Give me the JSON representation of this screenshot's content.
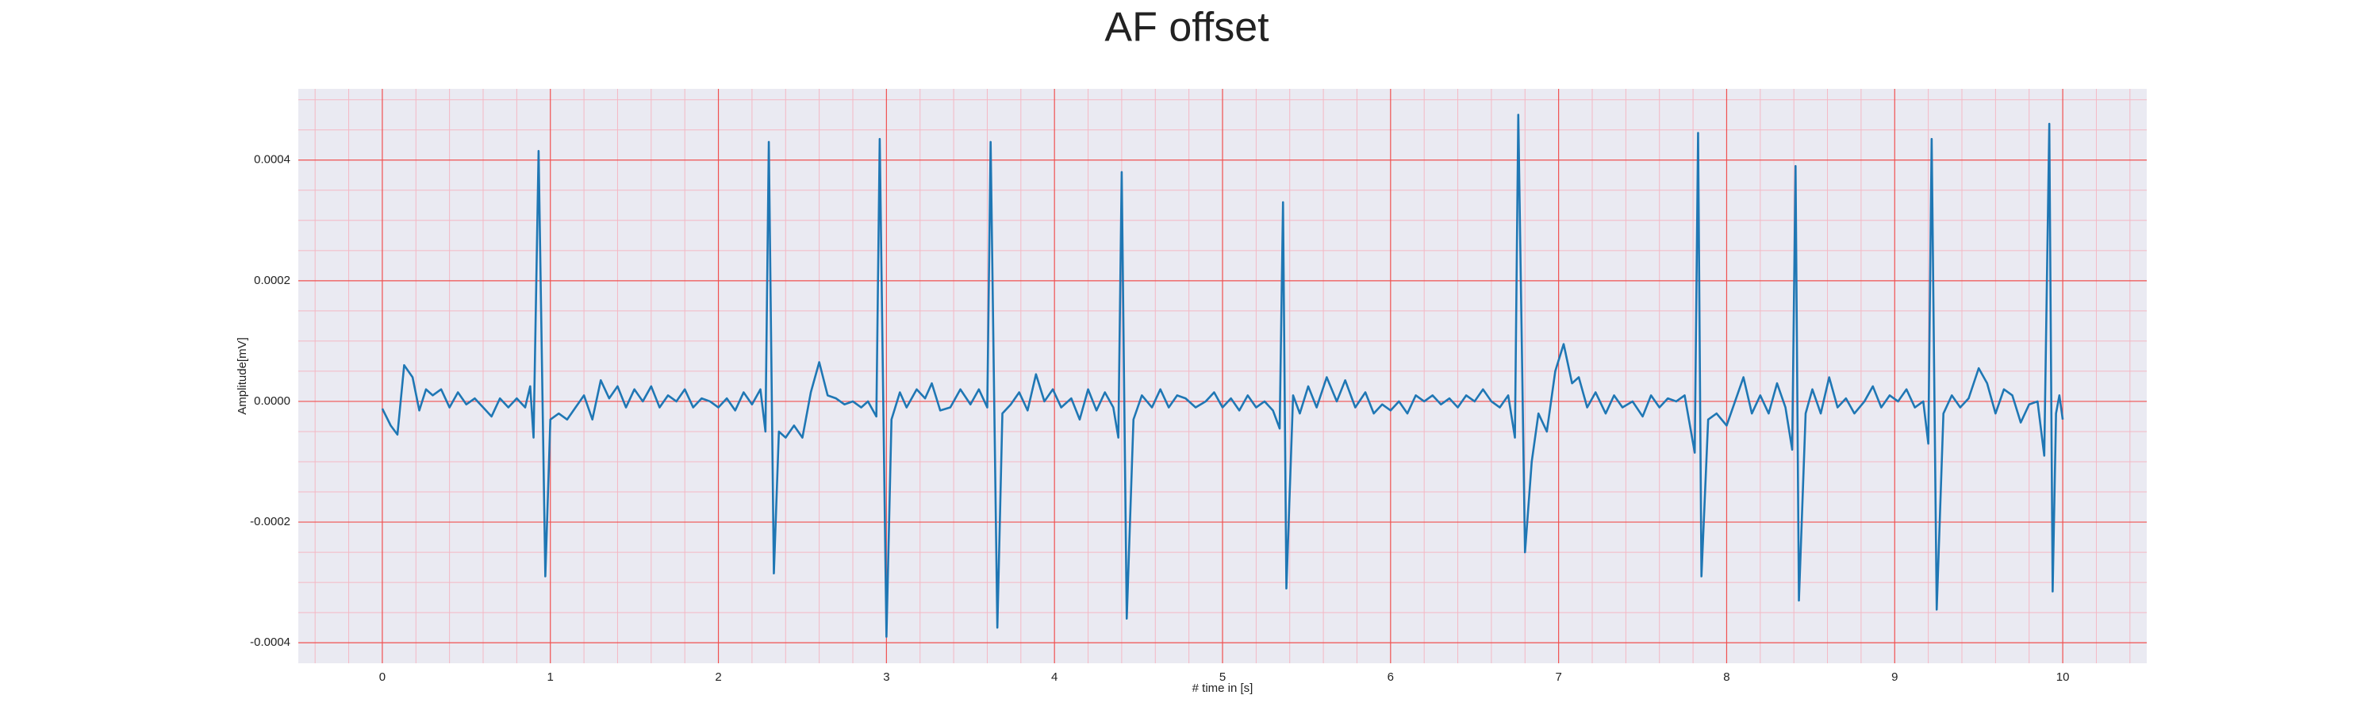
{
  "chart_data": {
    "type": "line",
    "title": "AF offset",
    "xlabel": "# time in [s]",
    "ylabel": "Amplitude[mV]",
    "color": "#1f77b4",
    "grid": true,
    "xlim": [
      -0.5,
      10.5
    ],
    "ylim": [
      -0.000434,
      0.000518
    ],
    "xticks": [
      0,
      1,
      2,
      3,
      4,
      5,
      6,
      7,
      8,
      9,
      10
    ],
    "yticks": [
      {
        "value": -0.0004,
        "label": "-0.0004"
      },
      {
        "value": -0.0002,
        "label": "-0.0002"
      },
      {
        "value": 0,
        "label": "0.0000"
      },
      {
        "value": 0.0002,
        "label": "0.0002"
      },
      {
        "value": 0.0004,
        "label": "0.0004"
      }
    ],
    "xminorticks": [
      -0.4,
      -0.2,
      0.2,
      0.4,
      0.6,
      0.8,
      1.2,
      1.4,
      1.6,
      1.8,
      2.2,
      2.4,
      2.6,
      2.8,
      3.2,
      3.4,
      3.6,
      3.8,
      4.2,
      4.4,
      4.6,
      4.8,
      5.2,
      5.4,
      5.6,
      5.8,
      6.2,
      6.4,
      6.6,
      6.8,
      7.2,
      7.4,
      7.6,
      7.8,
      8.2,
      8.4,
      8.6,
      8.8,
      9.2,
      9.4,
      9.6,
      9.8,
      10.2,
      10.4
    ],
    "yminorticks": [
      -0.00035,
      -0.0003,
      -0.00025,
      -0.00015,
      -0.0001,
      -5e-05,
      5e-05,
      0.0001,
      0.00015,
      0.00025,
      0.0003,
      0.00035,
      0.00045,
      0.0005
    ],
    "x": [
      0,
      0.05,
      0.09,
      0.13,
      0.18,
      0.22,
      0.26,
      0.3,
      0.35,
      0.4,
      0.45,
      0.5,
      0.55,
      0.6,
      0.65,
      0.7,
      0.75,
      0.8,
      0.85,
      0.88,
      0.9,
      0.93,
      0.97,
      1.0,
      1.05,
      1.1,
      1.15,
      1.2,
      1.25,
      1.3,
      1.35,
      1.4,
      1.45,
      1.5,
      1.55,
      1.6,
      1.65,
      1.7,
      1.75,
      1.8,
      1.85,
      1.9,
      1.95,
      2.0,
      2.05,
      2.1,
      2.15,
      2.2,
      2.25,
      2.28,
      2.3,
      2.33,
      2.36,
      2.4,
      2.45,
      2.5,
      2.55,
      2.6,
      2.65,
      2.7,
      2.75,
      2.8,
      2.85,
      2.89,
      2.94,
      2.96,
      3.0,
      3.03,
      3.08,
      3.12,
      3.18,
      3.23,
      3.27,
      3.32,
      3.38,
      3.44,
      3.5,
      3.55,
      3.6,
      3.62,
      3.66,
      3.69,
      3.74,
      3.79,
      3.84,
      3.89,
      3.94,
      3.99,
      4.04,
      4.1,
      4.15,
      4.2,
      4.25,
      4.3,
      4.35,
      4.38,
      4.4,
      4.43,
      4.47,
      4.52,
      4.58,
      4.63,
      4.68,
      4.73,
      4.78,
      4.84,
      4.9,
      4.95,
      5.0,
      5.05,
      5.1,
      5.15,
      5.2,
      5.25,
      5.3,
      5.34,
      5.36,
      5.38,
      5.42,
      5.46,
      5.51,
      5.56,
      5.62,
      5.68,
      5.73,
      5.79,
      5.85,
      5.9,
      5.95,
      6.0,
      6.05,
      6.1,
      6.15,
      6.2,
      6.25,
      6.3,
      6.35,
      6.4,
      6.45,
      6.5,
      6.55,
      6.6,
      6.65,
      6.7,
      6.74,
      6.76,
      6.8,
      6.84,
      6.88,
      6.93,
      6.98,
      7.03,
      7.08,
      7.12,
      7.17,
      7.22,
      7.28,
      7.33,
      7.38,
      7.44,
      7.5,
      7.55,
      7.6,
      7.65,
      7.7,
      7.75,
      7.81,
      7.83,
      7.85,
      7.89,
      7.94,
      8.0,
      8.05,
      8.1,
      8.15,
      8.2,
      8.25,
      8.3,
      8.35,
      8.39,
      8.41,
      8.43,
      8.47,
      8.51,
      8.56,
      8.61,
      8.66,
      8.71,
      8.76,
      8.82,
      8.87,
      8.92,
      8.97,
      9.02,
      9.07,
      9.12,
      9.17,
      9.2,
      9.22,
      9.25,
      9.29,
      9.34,
      9.39,
      9.44,
      9.5,
      9.55,
      9.6,
      9.65,
      9.7,
      9.75,
      9.8,
      9.85,
      9.89,
      9.92,
      9.94,
      9.96,
      9.98,
      10.0
    ],
    "values": [
      -1.2e-05,
      -4e-05,
      -5.5e-05,
      6e-05,
      4e-05,
      -1.5e-05,
      2e-05,
      1e-05,
      2e-05,
      -1e-05,
      1.5e-05,
      -5e-06,
      5e-06,
      -1e-05,
      -2.5e-05,
      5e-06,
      -1e-05,
      5e-06,
      -1e-05,
      2.5e-05,
      -6e-05,
      0.000415,
      -0.00029,
      -3e-05,
      -2e-05,
      -3e-05,
      -1e-05,
      1e-05,
      -3e-05,
      3.5e-05,
      5e-06,
      2.5e-05,
      -1e-05,
      2e-05,
      0,
      2.5e-05,
      -1e-05,
      1e-05,
      0,
      2e-05,
      -1e-05,
      5e-06,
      0,
      -1e-05,
      5e-06,
      -1.5e-05,
      1.5e-05,
      -5e-06,
      2e-05,
      -5e-05,
      0.00043,
      -0.000285,
      -5e-05,
      -6e-05,
      -4e-05,
      -6e-05,
      1.5e-05,
      6.5e-05,
      1e-05,
      5e-06,
      -5e-06,
      0,
      -1e-05,
      0,
      -2.5e-05,
      0.000435,
      -0.00039,
      -3e-05,
      1.5e-05,
      -1e-05,
      2e-05,
      5e-06,
      3e-05,
      -1.5e-05,
      -1e-05,
      2e-05,
      -5e-06,
      2e-05,
      -1e-05,
      0.00043,
      -0.000375,
      -2e-05,
      -5e-06,
      1.5e-05,
      -1.5e-05,
      4.5e-05,
      0,
      2e-05,
      -1e-05,
      5e-06,
      -3e-05,
      2e-05,
      -1.5e-05,
      1.5e-05,
      -1e-05,
      -6e-05,
      0.00038,
      -0.00036,
      -3e-05,
      1e-05,
      -1e-05,
      2e-05,
      -1e-05,
      1e-05,
      5e-06,
      -1e-05,
      0,
      1.5e-05,
      -1e-05,
      5e-06,
      -1.5e-05,
      1e-05,
      -1e-05,
      0,
      -1.5e-05,
      -4.5e-05,
      0.00033,
      -0.00031,
      1e-05,
      -2e-05,
      2.5e-05,
      -1e-05,
      4e-05,
      0,
      3.5e-05,
      -1e-05,
      1.5e-05,
      -2e-05,
      -5e-06,
      -1.5e-05,
      0,
      -2e-05,
      1e-05,
      0,
      1e-05,
      -5e-06,
      5e-06,
      -1e-05,
      1e-05,
      0,
      2e-05,
      0,
      -1e-05,
      1e-05,
      -6e-05,
      0.000475,
      -0.00025,
      -0.0001,
      -2e-05,
      -5e-05,
      5e-05,
      9.5e-05,
      3e-05,
      4e-05,
      -1e-05,
      1.5e-05,
      -2e-05,
      1e-05,
      -1e-05,
      0,
      -2.5e-05,
      1e-05,
      -1e-05,
      5e-06,
      0,
      1e-05,
      -8.5e-05,
      0.000445,
      -0.00029,
      -3e-05,
      -2e-05,
      -4e-05,
      0,
      4e-05,
      -2e-05,
      1e-05,
      -2e-05,
      3e-05,
      -1e-05,
      -8e-05,
      0.00039,
      -0.00033,
      -2e-05,
      2e-05,
      -2e-05,
      4e-05,
      -1e-05,
      5e-06,
      -2e-05,
      0,
      2.5e-05,
      -1e-05,
      1e-05,
      0,
      2e-05,
      -1e-05,
      0,
      -7e-05,
      0.000435,
      -0.000345,
      -2e-05,
      1e-05,
      -1e-05,
      5e-06,
      5.5e-05,
      3e-05,
      -2e-05,
      2e-05,
      1e-05,
      -3.5e-05,
      -5e-06,
      0,
      -9e-05,
      0.00046,
      -0.000315,
      -2e-05,
      1e-05,
      -3e-05
    ]
  }
}
